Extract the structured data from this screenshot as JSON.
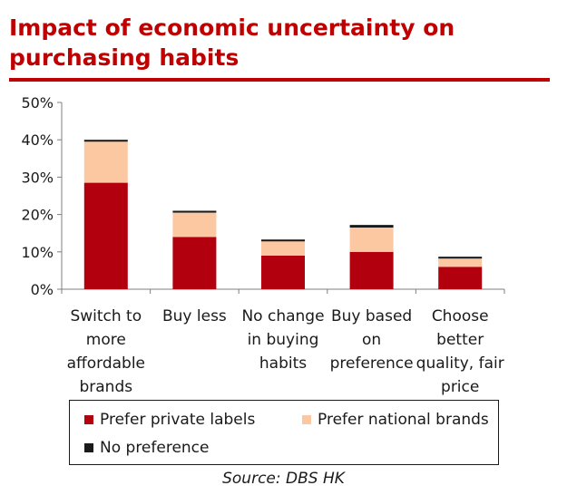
{
  "title": "Impact of economic uncertainty on purchasing habits",
  "source": "Source: DBS HK",
  "colors": {
    "title": "#c00000",
    "private": "#b3000f",
    "national": "#fcc8a2",
    "none": "#1a1a1a"
  },
  "chart_data": {
    "type": "bar",
    "stacked": true,
    "categories": [
      [
        "Switch to",
        "more",
        "affordable",
        "brands"
      ],
      [
        "Buy less"
      ],
      [
        "No change",
        "in buying",
        "habits"
      ],
      [
        "Buy based",
        "on",
        "preference"
      ],
      [
        "Choose",
        "better",
        "quality, fair",
        "price"
      ]
    ],
    "series": [
      {
        "name": "Prefer private labels",
        "values": [
          28.5,
          14,
          9,
          10,
          6
        ]
      },
      {
        "name": "Prefer national brands",
        "values": [
          11.0,
          6.5,
          3.8,
          6.5,
          2.2
        ]
      },
      {
        "name": "No preference",
        "values": [
          0.5,
          0.5,
          0.5,
          0.7,
          0.5
        ]
      }
    ],
    "yticks": [
      "0%",
      "10%",
      "20%",
      "30%",
      "40%",
      "50%"
    ],
    "ylim": [
      0,
      50
    ],
    "grid": false,
    "legend_position": "bottom"
  }
}
